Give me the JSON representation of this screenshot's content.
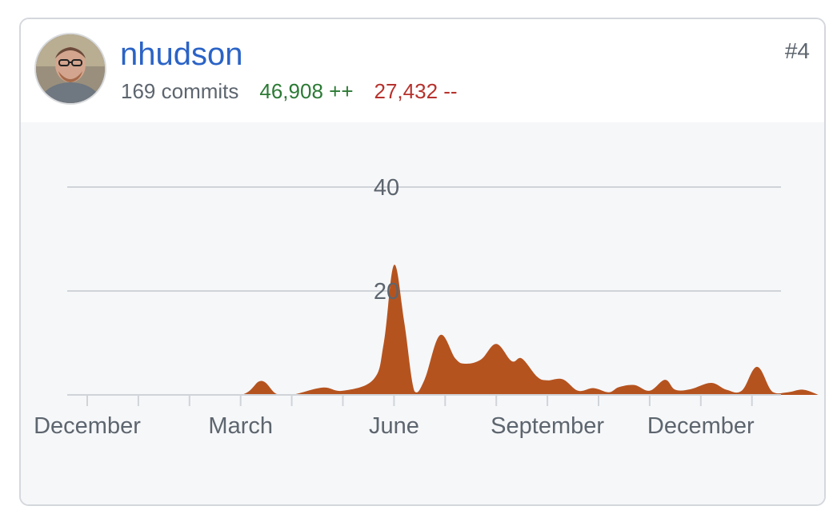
{
  "contributor": {
    "username": "nhudson",
    "commits": "169 commits",
    "additions": "46,908 ++",
    "deletions": "27,432 --",
    "rank": "#4",
    "avatar_icon": "user-avatar-photo"
  },
  "colors": {
    "username": "#2b63c6",
    "additions": "#2c7a35",
    "deletions": "#b7322d",
    "area_fill": "#b5531f",
    "gridline": "#d0d4d9",
    "chart_bg": "#f6f7f9"
  },
  "chart_data": {
    "type": "area",
    "y_ticks": [
      "20",
      "40"
    ],
    "ylim": [
      0,
      40
    ],
    "x_tick_labels": [
      "December",
      "March",
      "June",
      "September",
      "December"
    ],
    "grid": true,
    "series": [
      {
        "x": [
          0,
          1,
          2,
          3,
          3.4,
          3.7,
          4.0,
          4.6,
          5.0,
          5.6,
          5.8,
          6.0,
          6.2,
          6.4,
          6.6,
          6.9,
          7.2,
          7.4,
          7.7,
          8.0,
          8.3,
          8.5,
          8.8,
          9.0,
          9.3,
          9.6,
          9.9,
          10.2,
          10.4,
          10.7,
          11.0,
          11.3,
          11.5,
          11.8,
          12.2,
          12.5,
          12.8,
          13.1,
          13.4,
          13.7,
          14.0,
          14.3
        ],
        "y": [
          0,
          0,
          0,
          0,
          2.7,
          0.2,
          0,
          1.4,
          0.8,
          3.0,
          10.0,
          25.0,
          14.0,
          0.7,
          3.0,
          11.5,
          7.0,
          6.0,
          6.8,
          9.8,
          6.5,
          7.0,
          3.5,
          2.8,
          3.0,
          0.8,
          1.3,
          0.5,
          1.5,
          1.9,
          0.8,
          2.9,
          1.0,
          1.1,
          2.3,
          1.0,
          0.8,
          5.4,
          0.6,
          0.5,
          1.0,
          0
        ]
      }
    ]
  }
}
